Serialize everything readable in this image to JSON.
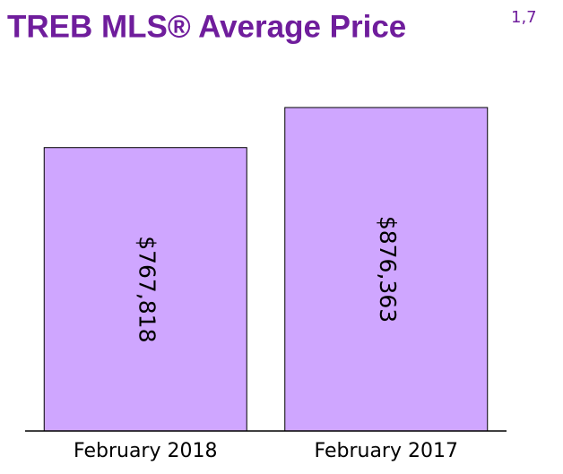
{
  "chart_data": {
    "type": "bar",
    "title": "TREB MLS® Average Price",
    "title_note": "1,7",
    "categories": [
      "February 2018",
      "February 2017"
    ],
    "values": [
      767818,
      876363
    ],
    "value_labels": [
      "$767,818",
      "$876,363"
    ],
    "color": "#cfa6ff"
  }
}
